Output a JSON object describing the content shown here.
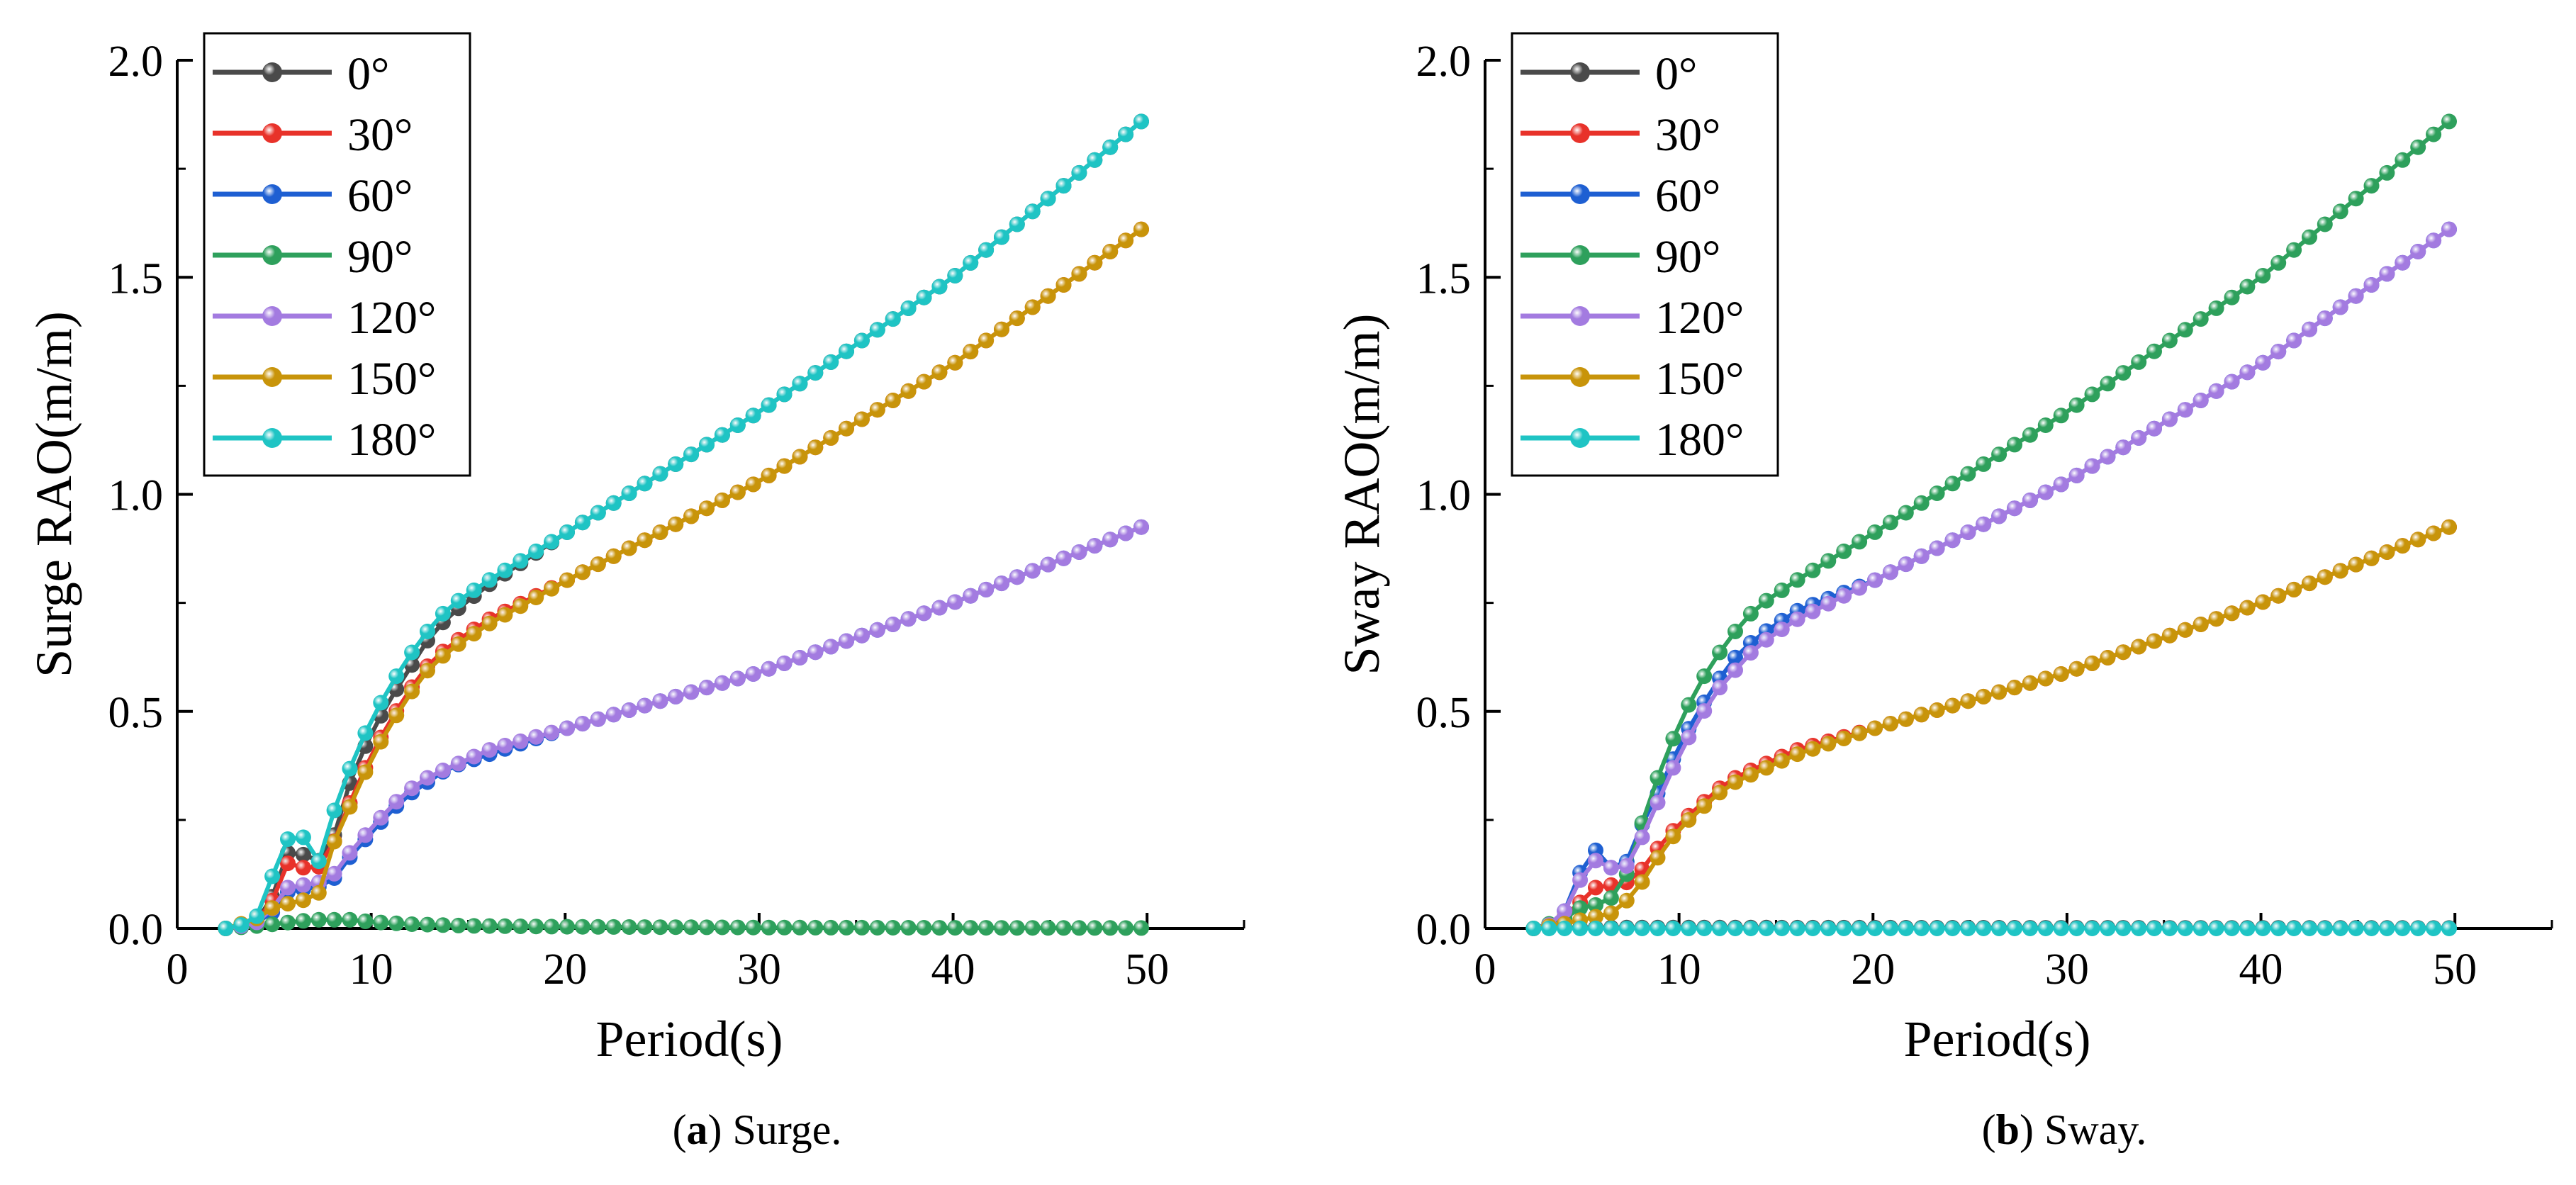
{
  "figure": {
    "captions": [
      {
        "letter": "a",
        "text": " Surge."
      },
      {
        "letter": "b",
        "text": " Sway."
      }
    ]
  },
  "colors": {
    "0°": "#4a4a4a",
    "30°": "#e8322a",
    "60°": "#1e5fd2",
    "90°": "#2ea05c",
    "120°": "#a37be0",
    "150°": "#c8940a",
    "180°": "#1fc4c4"
  },
  "chart_data": [
    {
      "type": "line",
      "id": "surge",
      "title": "",
      "xlabel": "Period(s)",
      "ylabel": "Surge RAO(m/m)",
      "xlim": [
        0,
        55
      ],
      "ylim": [
        0,
        2.0
      ],
      "xticks": [
        0,
        10,
        20,
        30,
        40,
        50
      ],
      "yticks": [
        0.0,
        0.5,
        1.0,
        1.5,
        2.0
      ],
      "ytick_labels": [
        "0.0",
        "0.5",
        "1.0",
        "1.5",
        "2.0"
      ],
      "legend_position": "top-left",
      "series": [
        {
          "name": "0°",
          "anchors": [
            [
              2.5,
              0
            ],
            [
              4,
              0.01
            ],
            [
              5,
              0.08
            ],
            [
              5.5,
              0.17
            ],
            [
              6,
              0.18
            ],
            [
              6.5,
              0.17
            ],
            [
              7,
              0.15
            ],
            [
              7.5,
              0.16
            ],
            [
              8,
              0.2
            ],
            [
              9,
              0.35
            ],
            [
              10,
              0.45
            ],
            [
              11,
              0.53
            ],
            [
              12,
              0.6
            ],
            [
              13,
              0.67
            ],
            [
              14,
              0.72
            ],
            [
              16,
              0.79
            ],
            [
              20,
              0.91
            ],
            [
              30,
              1.19
            ],
            [
              40,
              1.5
            ],
            [
              50,
              1.87
            ]
          ]
        },
        {
          "name": "30°",
          "anchors": [
            [
              2.5,
              0
            ],
            [
              4,
              0.01
            ],
            [
              5,
              0.07
            ],
            [
              5.5,
              0.15
            ],
            [
              6,
              0.15
            ],
            [
              6.5,
              0.14
            ],
            [
              7,
              0.13
            ],
            [
              7.5,
              0.15
            ],
            [
              8,
              0.19
            ],
            [
              9,
              0.3
            ],
            [
              10,
              0.4
            ],
            [
              11,
              0.48
            ],
            [
              12,
              0.55
            ],
            [
              13,
              0.61
            ],
            [
              14,
              0.65
            ],
            [
              16,
              0.71
            ],
            [
              20,
              0.8
            ],
            [
              30,
              1.03
            ],
            [
              40,
              1.3
            ],
            [
              50,
              1.62
            ]
          ]
        },
        {
          "name": "60°",
          "anchors": [
            [
              2.5,
              0
            ],
            [
              4,
              0.01
            ],
            [
              5,
              0.04
            ],
            [
              5.5,
              0.08
            ],
            [
              6,
              0.09
            ],
            [
              6.5,
              0.09
            ],
            [
              7,
              0.09
            ],
            [
              8,
              0.11
            ],
            [
              9,
              0.17
            ],
            [
              10,
              0.22
            ],
            [
              11,
              0.27
            ],
            [
              12,
              0.31
            ],
            [
              13,
              0.34
            ],
            [
              14,
              0.37
            ],
            [
              16,
              0.4
            ],
            [
              20,
              0.46
            ],
            [
              30,
              0.59
            ],
            [
              40,
              0.75
            ],
            [
              50,
              0.93
            ]
          ]
        },
        {
          "name": "90°",
          "anchors": [
            [
              2.5,
              0
            ],
            [
              4,
              0.005
            ],
            [
              5,
              0.01
            ],
            [
              6,
              0.015
            ],
            [
              7,
              0.02
            ],
            [
              8,
              0.02
            ],
            [
              9,
              0.02
            ],
            [
              10,
              0.015
            ],
            [
              12,
              0.01
            ],
            [
              15,
              0.006
            ],
            [
              20,
              0.004
            ],
            [
              30,
              0.002
            ],
            [
              50,
              0.001
            ]
          ]
        },
        {
          "name": "120°",
          "anchors": [
            [
              2.5,
              0
            ],
            [
              4,
              0.01
            ],
            [
              5,
              0.05
            ],
            [
              5.5,
              0.09
            ],
            [
              6,
              0.1
            ],
            [
              6.5,
              0.1
            ],
            [
              7,
              0.1
            ],
            [
              8,
              0.12
            ],
            [
              9,
              0.18
            ],
            [
              10,
              0.23
            ],
            [
              11,
              0.28
            ],
            [
              12,
              0.32
            ],
            [
              13,
              0.35
            ],
            [
              14,
              0.37
            ],
            [
              16,
              0.41
            ],
            [
              20,
              0.46
            ],
            [
              30,
              0.59
            ],
            [
              40,
              0.75
            ],
            [
              50,
              0.93
            ]
          ]
        },
        {
          "name": "150°",
          "anchors": [
            [
              2.5,
              0
            ],
            [
              4,
              0.02
            ],
            [
              5,
              0.05
            ],
            [
              6,
              0.06
            ],
            [
              7,
              0.07
            ],
            [
              7.5,
              0.09
            ],
            [
              8,
              0.19
            ],
            [
              9,
              0.29
            ],
            [
              10,
              0.39
            ],
            [
              11,
              0.47
            ],
            [
              12,
              0.54
            ],
            [
              13,
              0.6
            ],
            [
              14,
              0.64
            ],
            [
              16,
              0.7
            ],
            [
              20,
              0.8
            ],
            [
              30,
              1.03
            ],
            [
              40,
              1.3
            ],
            [
              50,
              1.62
            ]
          ]
        },
        {
          "name": "180°",
          "anchors": [
            [
              2.5,
              0
            ],
            [
              3.5,
              0.01
            ],
            [
              4.5,
              0.04
            ],
            [
              5.3,
              0.2
            ],
            [
              6,
              0.21
            ],
            [
              6.5,
              0.21
            ],
            [
              7.2,
              0.14
            ],
            [
              8,
              0.26
            ],
            [
              9,
              0.38
            ],
            [
              10,
              0.48
            ],
            [
              11,
              0.56
            ],
            [
              12,
              0.63
            ],
            [
              13,
              0.69
            ],
            [
              14,
              0.74
            ],
            [
              16,
              0.8
            ],
            [
              20,
              0.91
            ],
            [
              30,
              1.19
            ],
            [
              40,
              1.5
            ],
            [
              50,
              1.87
            ]
          ]
        }
      ]
    },
    {
      "type": "line",
      "id": "sway",
      "title": "",
      "xlabel": "Period(s)",
      "ylabel": "Sway RAO(m/m)",
      "xlim": [
        0,
        55
      ],
      "ylim": [
        0,
        2.0
      ],
      "xticks": [
        0,
        10,
        20,
        30,
        40,
        50
      ],
      "yticks": [
        0.0,
        0.5,
        1.0,
        1.5,
        2.0
      ],
      "ytick_labels": [
        "0.0",
        "0.5",
        "1.0",
        "1.5",
        "2.0"
      ],
      "legend_position": "top-left",
      "series": [
        {
          "name": "0°",
          "anchors": [
            [
              2.5,
              0
            ],
            [
              5,
              0.002
            ],
            [
              10,
              0.002
            ],
            [
              50,
              0.001
            ]
          ]
        },
        {
          "name": "30°",
          "anchors": [
            [
              2.5,
              0
            ],
            [
              3.5,
              0.01
            ],
            [
              4.5,
              0.04
            ],
            [
              5.5,
              0.09
            ],
            [
              6,
              0.1
            ],
            [
              6.5,
              0.1
            ],
            [
              7,
              0.1
            ],
            [
              7.5,
              0.11
            ],
            [
              8,
              0.13
            ],
            [
              9,
              0.19
            ],
            [
              10,
              0.24
            ],
            [
              11,
              0.28
            ],
            [
              12,
              0.32
            ],
            [
              13,
              0.35
            ],
            [
              14,
              0.37
            ],
            [
              16,
              0.41
            ],
            [
              20,
              0.46
            ],
            [
              30,
              0.59
            ],
            [
              40,
              0.75
            ],
            [
              50,
              0.93
            ]
          ]
        },
        {
          "name": "60°",
          "anchors": [
            [
              2.5,
              0
            ],
            [
              3.5,
              0.01
            ],
            [
              4.5,
              0.06
            ],
            [
              5.2,
              0.18
            ],
            [
              6,
              0.18
            ],
            [
              6.5,
              0.14
            ],
            [
              7,
              0.13
            ],
            [
              7.5,
              0.17
            ],
            [
              8,
              0.23
            ],
            [
              9,
              0.32
            ],
            [
              10,
              0.42
            ],
            [
              11,
              0.5
            ],
            [
              12,
              0.57
            ],
            [
              13,
              0.63
            ],
            [
              14,
              0.67
            ],
            [
              16,
              0.73
            ],
            [
              20,
              0.8
            ],
            [
              30,
              1.03
            ],
            [
              40,
              1.3
            ],
            [
              50,
              1.62
            ]
          ]
        },
        {
          "name": "90°",
          "anchors": [
            [
              2.5,
              0
            ],
            [
              4,
              0.02
            ],
            [
              5,
              0.05
            ],
            [
              5.5,
              0.05
            ],
            [
              6.5,
              0.07
            ],
            [
              7,
              0.08
            ],
            [
              8,
              0.23
            ],
            [
              9,
              0.36
            ],
            [
              10,
              0.47
            ],
            [
              11,
              0.56
            ],
            [
              12,
              0.63
            ],
            [
              13,
              0.69
            ],
            [
              14,
              0.74
            ],
            [
              16,
              0.8
            ],
            [
              20,
              0.91
            ],
            [
              30,
              1.19
            ],
            [
              40,
              1.5
            ],
            [
              50,
              1.87
            ]
          ]
        },
        {
          "name": "120°",
          "anchors": [
            [
              2.5,
              0
            ],
            [
              3.5,
              0.01
            ],
            [
              4.5,
              0.06
            ],
            [
              5.2,
              0.15
            ],
            [
              6,
              0.16
            ],
            [
              6.5,
              0.14
            ],
            [
              7,
              0.12
            ],
            [
              8,
              0.2
            ],
            [
              9,
              0.3
            ],
            [
              10,
              0.4
            ],
            [
              11,
              0.48
            ],
            [
              12,
              0.55
            ],
            [
              13,
              0.6
            ],
            [
              14,
              0.65
            ],
            [
              16,
              0.71
            ],
            [
              20,
              0.8
            ],
            [
              30,
              1.03
            ],
            [
              40,
              1.3
            ],
            [
              50,
              1.62
            ]
          ]
        },
        {
          "name": "150°",
          "anchors": [
            [
              2.5,
              0
            ],
            [
              4,
              0.01
            ],
            [
              5,
              0.02
            ],
            [
              6,
              0.03
            ],
            [
              7,
              0.04
            ],
            [
              7.5,
              0.08
            ],
            [
              8,
              0.1
            ],
            [
              9,
              0.17
            ],
            [
              10,
              0.23
            ],
            [
              11,
              0.27
            ],
            [
              12,
              0.31
            ],
            [
              13,
              0.34
            ],
            [
              14,
              0.36
            ],
            [
              16,
              0.4
            ],
            [
              20,
              0.46
            ],
            [
              30,
              0.59
            ],
            [
              40,
              0.75
            ],
            [
              50,
              0.93
            ]
          ]
        },
        {
          "name": "180°",
          "anchors": [
            [
              2.5,
              0
            ],
            [
              10,
              0.0
            ],
            [
              50,
              0.0
            ]
          ]
        }
      ]
    }
  ]
}
